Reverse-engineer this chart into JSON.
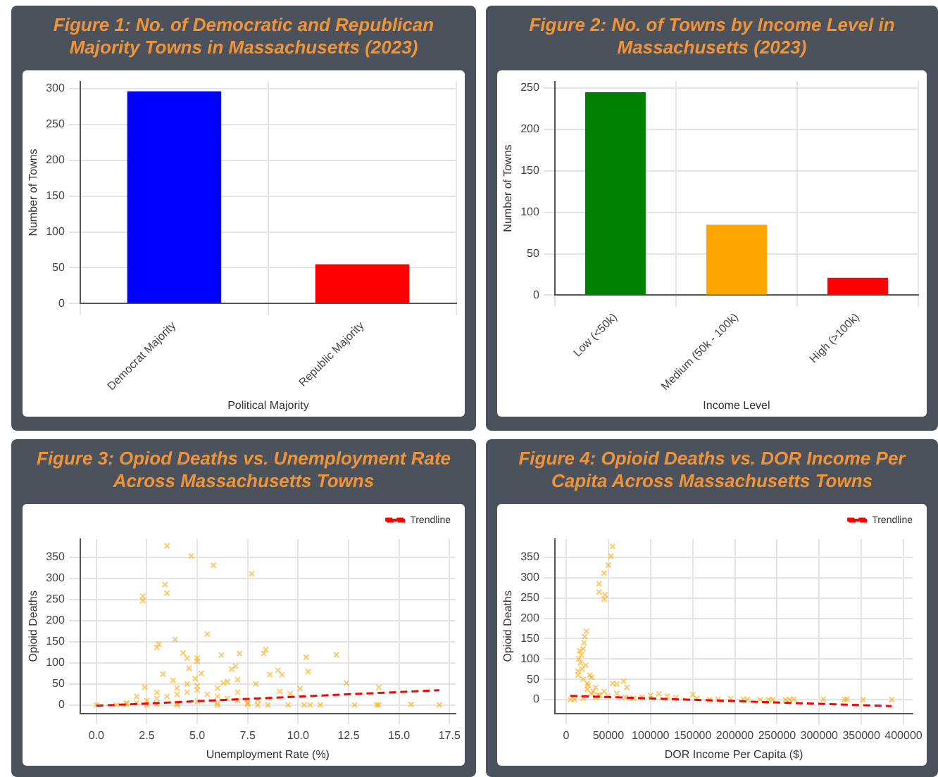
{
  "chart_data": [
    {
      "type": "bar",
      "title": "Figure 1: No. of Democratic and Republican Majority Towns in Massachusetts (2023)",
      "xlabel": "Political Majority",
      "ylabel": "Number of Towns",
      "categories": [
        "Democrat Majority",
        "Republic Majority"
      ],
      "values": [
        296,
        55
      ],
      "colors": [
        "#0000ff",
        "#ff0000"
      ],
      "ylim": [
        0,
        310
      ],
      "yticks": [
        0,
        50,
        100,
        150,
        200,
        250,
        300
      ],
      "grid": true
    },
    {
      "type": "bar",
      "title": "Figure 2: No. of Towns by Income Level in Massachusetts (2023)",
      "xlabel": "Income Level",
      "ylabel": "Number of Towns",
      "categories": [
        "Low (<50k)",
        "Medium (50k - 100k)",
        "High (>100k)"
      ],
      "values": [
        245,
        85,
        21
      ],
      "colors": [
        "#008000",
        "#ffa500",
        "#ff0000"
      ],
      "ylim": [
        0,
        258
      ],
      "yticks": [
        0,
        50,
        100,
        150,
        200,
        250
      ],
      "grid": true
    },
    {
      "type": "scatter",
      "title": "Figure 3: Opiod Deaths vs. Unemployment Rate Across Massachusetts Towns",
      "xlabel": "Unemployment Rate (%)",
      "ylabel": "Opioid Deaths",
      "xlim": [
        -0.8,
        17.8
      ],
      "xticks": [
        {
          "value": 0,
          "label": "0.0"
        },
        {
          "value": 2.5,
          "label": "2.5"
        },
        {
          "value": 5,
          "label": "5.0"
        },
        {
          "value": 7.5,
          "label": "7.5"
        },
        {
          "value": 10,
          "label": "10.0"
        },
        {
          "value": 12.5,
          "label": "12.5"
        },
        {
          "value": 15,
          "label": "15.0"
        },
        {
          "value": 17.5,
          "label": "17.5"
        }
      ],
      "ylim": [
        -20,
        393
      ],
      "yticks": [
        0,
        50,
        100,
        150,
        200,
        250,
        300,
        350
      ],
      "grid": true,
      "legend": "top right",
      "series": [
        {
          "type": "scatter",
          "marker": "cross",
          "color": "#ffa500",
          "x": [
            3.5,
            4.7,
            5.8,
            7.7,
            3.4,
            3.5,
            2.3,
            2.3,
            5.5,
            3.9,
            3.1,
            3.0,
            4.3,
            6.2,
            7.1,
            8.3,
            8.4,
            11.9,
            10.4,
            4.5,
            5.0,
            5.0,
            10.5,
            8.6,
            9.0,
            9.2,
            12.4,
            14.0,
            10.1,
            9.6,
            9.1,
            7.9,
            6.9,
            6.7,
            4.6,
            5.2,
            3.3,
            4.9,
            3.8,
            2.4,
            2.0,
            1.5,
            1.0,
            0,
            12.8,
            14.0,
            13.9,
            15.6,
            17.0,
            10.3,
            10.6,
            11.1,
            9.5,
            8.5,
            8.0,
            1.5,
            2.0,
            2.5,
            3.0,
            3.5,
            4.0,
            4.5,
            5.0,
            5.5,
            6.0,
            6.5,
            7.0,
            7.5,
            3.0,
            4.0,
            5.0,
            6.0,
            6.5,
            7.0,
            5.0,
            6.0,
            4.0,
            3.0,
            7.5,
            2.5,
            4.0,
            6.0,
            8.0,
            7.0,
            4.5,
            6.3
          ],
          "values": [
            377,
            353,
            331,
            311,
            285,
            265,
            258,
            247,
            168,
            155,
            144,
            136,
            123,
            118,
            122,
            122,
            131,
            119,
            113,
            111,
            111,
            103,
            79,
            72,
            82,
            72,
            52,
            42,
            39,
            27,
            32,
            50,
            92,
            85,
            87,
            75,
            73,
            62,
            58,
            42,
            20,
            5,
            0,
            0,
            0,
            0,
            0,
            1,
            0,
            0,
            0,
            0,
            0,
            0,
            0,
            2,
            5,
            10,
            15,
            20,
            25,
            30,
            35,
            25,
            20,
            15,
            10,
            5,
            30,
            40,
            45,
            40,
            55,
            60,
            8,
            5,
            3,
            2,
            2,
            0,
            0,
            0,
            12,
            30,
            50,
            52
          ]
        },
        {
          "type": "line",
          "name": "Trendline",
          "color": "#ff0000",
          "line_style": "dashed",
          "x": [
            0,
            17
          ],
          "values": [
            -2,
            35
          ]
        }
      ]
    },
    {
      "type": "scatter",
      "title": "Figure 4:  Opioid Deaths vs. DOR Income Per Capita Across Massachusetts Towns",
      "xlabel": "DOR Income Per Capita ($)",
      "ylabel": "Opioid Deaths",
      "xlim": [
        -13500,
        411000
      ],
      "xticks": [
        0,
        50000,
        100000,
        150000,
        200000,
        250000,
        300000,
        350000,
        400000
      ],
      "ylim": [
        -34,
        395
      ],
      "yticks": [
        0,
        50,
        100,
        150,
        200,
        250,
        300,
        350
      ],
      "grid": true,
      "legend": "top right",
      "series": [
        {
          "type": "scatter",
          "marker": "cross",
          "color": "#ffa500",
          "x": [
            55000,
            53000,
            50000,
            45000,
            39000,
            39000,
            46000,
            45000,
            24000,
            22000,
            21000,
            20000,
            16000,
            18000,
            15000,
            14000,
            14000,
            17000,
            19000,
            20000,
            25000,
            30000,
            35000,
            55000,
            60000,
            68000,
            72000,
            25000,
            30000,
            40000,
            50000,
            10000,
            5000,
            20000,
            35000,
            70000,
            80000,
            100000,
            110000,
            120000,
            130000,
            150000,
            155000,
            170000,
            180000,
            195000,
            210000,
            215000,
            230000,
            240000,
            245000,
            260000,
            265000,
            270000,
            305000,
            330000,
            333000,
            352000,
            386000,
            90000,
            60000,
            45000,
            28000,
            23000,
            26000,
            32000,
            38000
          ],
          "values": [
            377,
            353,
            331,
            311,
            285,
            265,
            258,
            247,
            168,
            155,
            140,
            125,
            120,
            110,
            100,
            70,
            60,
            90,
            75,
            50,
            40,
            55,
            30,
            40,
            38,
            45,
            30,
            25,
            15,
            10,
            8,
            0,
            0,
            3,
            5,
            5,
            3,
            10,
            14,
            8,
            5,
            12,
            3,
            0,
            1,
            2,
            1,
            0,
            0,
            0,
            0,
            0,
            0,
            1,
            1,
            0,
            1,
            0,
            0,
            6,
            15,
            20,
            60,
            85,
            35,
            20,
            12
          ]
        },
        {
          "type": "line",
          "name": "Trendline",
          "color": "#ff0000",
          "line_style": "dashed",
          "x": [
            5000,
            386000
          ],
          "values": [
            9,
            -16
          ]
        }
      ]
    }
  ]
}
